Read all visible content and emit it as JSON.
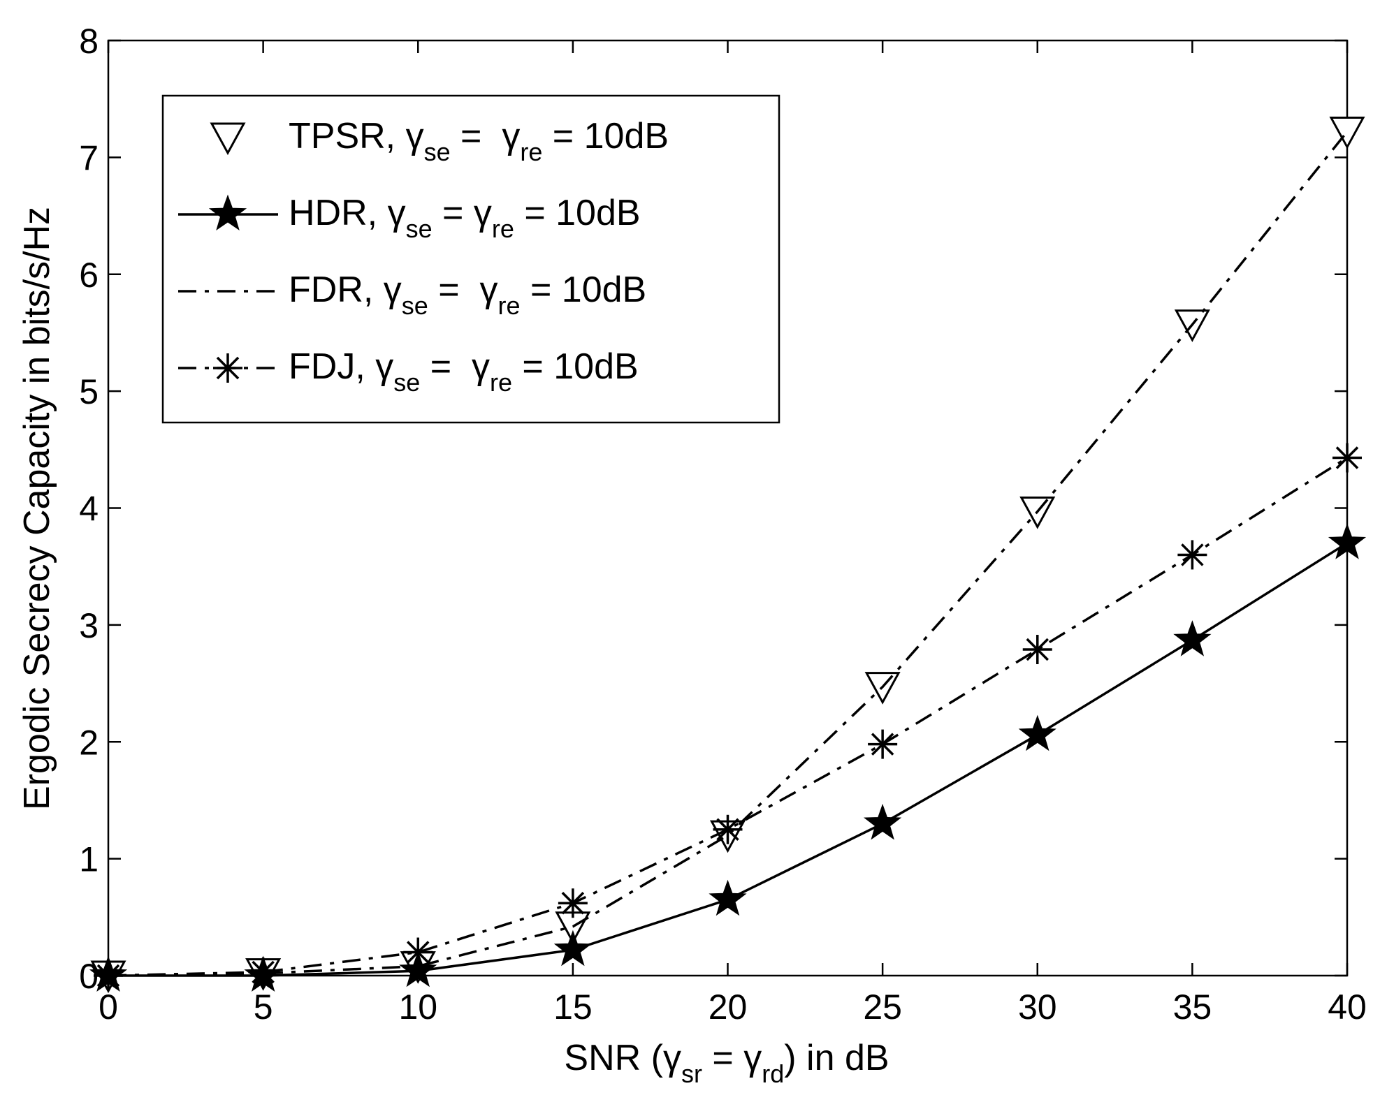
{
  "chart_data": {
    "type": "line",
    "title": "",
    "xlabel": {
      "prefix": "SNR (",
      "g1": "γ",
      "g1_sub": "sr",
      "mid": " = ",
      "g2": "γ",
      "g2_sub": "rd",
      "suffix": ") in dB"
    },
    "ylabel": "Ergodic Secrecy Capacity in bits/s/Hz",
    "xlim": [
      0,
      40
    ],
    "ylim": [
      0,
      8
    ],
    "xticks": [
      0,
      5,
      10,
      15,
      20,
      25,
      30,
      35,
      40
    ],
    "yticks": [
      0,
      1,
      2,
      3,
      4,
      5,
      6,
      7,
      8
    ],
    "grid": false,
    "legend_position": "top-left",
    "x": [
      0,
      5,
      10,
      15,
      20,
      25,
      30,
      35,
      40
    ],
    "series": [
      {
        "name": "TPSR",
        "legend": {
          "prefix": "TPSR, ",
          "g1": "γ",
          "g1_sub": "se",
          "eq1": " =  ",
          "g2": "γ",
          "g2_sub": "re",
          "tail": " = 10dB"
        },
        "marker": "triangle-down",
        "line": "none",
        "color": "#000000",
        "values": [
          0.0,
          0.02,
          0.08,
          0.42,
          1.2,
          2.47,
          3.97,
          5.57,
          7.22
        ]
      },
      {
        "name": "HDR",
        "legend": {
          "prefix": "HDR, ",
          "g1": "γ",
          "g1_sub": "se",
          "eq1": " = ",
          "g2": "γ",
          "g2_sub": "re",
          "tail": " = 10dB"
        },
        "marker": "star",
        "line": "solid",
        "color": "#000000",
        "values": [
          0.0,
          0.0,
          0.04,
          0.22,
          0.65,
          1.3,
          2.06,
          2.87,
          3.7
        ]
      },
      {
        "name": "FDR",
        "legend": {
          "prefix": "FDR, ",
          "g1": "γ",
          "g1_sub": "se",
          "eq1": " =  ",
          "g2": "γ",
          "g2_sub": "re",
          "tail": " = 10dB"
        },
        "marker": "none",
        "line": "dashdot",
        "color": "#000000",
        "values": [
          0.0,
          0.02,
          0.08,
          0.42,
          1.2,
          2.47,
          3.97,
          5.57,
          7.22
        ]
      },
      {
        "name": "FDJ",
        "legend": {
          "prefix": "FDJ, ",
          "g1": "γ",
          "g1_sub": "se",
          "eq1": " =  ",
          "g2": "γ",
          "g2_sub": "re",
          "tail": " = 10dB"
        },
        "marker": "asterisk",
        "line": "dashdot",
        "color": "#000000",
        "values": [
          0.0,
          0.03,
          0.2,
          0.62,
          1.25,
          1.98,
          2.79,
          3.6,
          4.43
        ]
      }
    ]
  }
}
